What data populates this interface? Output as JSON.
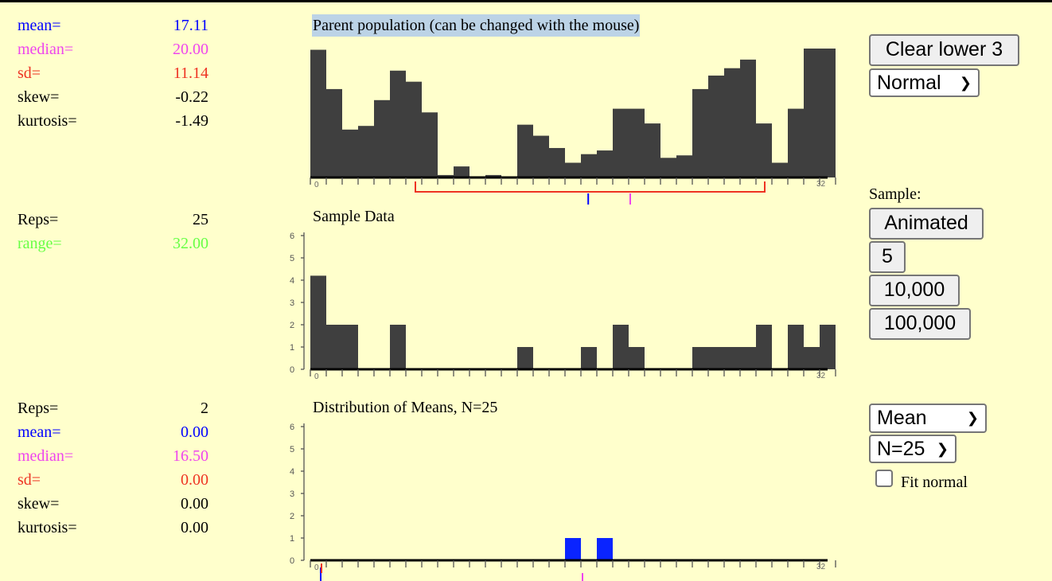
{
  "colors": {
    "background": "#ffffcc",
    "bar": "#3f3f3f",
    "mean_bar": "#0a24ff",
    "blue": "#0000ff",
    "magenta": "#ee44ee",
    "red": "#ee3322",
    "green": "#66ff44",
    "highlight": "#bcd3e6"
  },
  "parent_stats": [
    {
      "label": "mean=",
      "value": "17.11",
      "color": "blue"
    },
    {
      "label": "median=",
      "value": "20.00",
      "color": "magenta"
    },
    {
      "label": "sd=",
      "value": "11.14",
      "color": "red"
    },
    {
      "label": "skew=",
      "value": "-0.22",
      "color": "black"
    },
    {
      "label": "kurtosis=",
      "value": "-1.49",
      "color": "black"
    }
  ],
  "sample_stats": [
    {
      "label": "Reps=",
      "value": "25",
      "color": "black"
    },
    {
      "label": "range=",
      "value": "32.00",
      "color": "green"
    }
  ],
  "means_stats": [
    {
      "label": "Reps=",
      "value": "2",
      "color": "black"
    },
    {
      "label": "mean=",
      "value": "0.00",
      "color": "blue"
    },
    {
      "label": "median=",
      "value": "16.50",
      "color": "magenta"
    },
    {
      "label": "sd=",
      "value": "0.00",
      "color": "red"
    },
    {
      "label": "skew=",
      "value": "0.00",
      "color": "black"
    },
    {
      "label": "kurtosis=",
      "value": "0.00",
      "color": "black"
    }
  ],
  "parent_panel": {
    "title": "Parent population (can be changed with the mouse)",
    "axis_min_label": "0",
    "axis_max_label": "32"
  },
  "sample_panel": {
    "title": "Sample Data",
    "axis_min_label": "0",
    "axis_max_label": "32"
  },
  "means_panel": {
    "title": "Distribution of Means, N=25",
    "axis_min_label": "0",
    "axis_max_label": "32"
  },
  "controls": {
    "clear_button": "Clear lower 3",
    "shape_select": "Normal",
    "sample_label": "Sample:",
    "animated_button": "Animated",
    "btn_5": "5",
    "btn_10000": "10,000",
    "btn_100000": "100,000",
    "statistic_select": "Mean",
    "n_select": "N=25",
    "fit_normal_label": "Fit normal",
    "fit_normal_checked": false
  },
  "chart_data": [
    {
      "type": "bar",
      "name": "parent",
      "xlim": [
        0,
        33
      ],
      "ylim": [
        0,
        10.5
      ],
      "categories": [
        0,
        1,
        2,
        3,
        4,
        5,
        6,
        7,
        8,
        9,
        10,
        11,
        12,
        13,
        14,
        15,
        16,
        17,
        18,
        19,
        20,
        21,
        22,
        23,
        24,
        25,
        26,
        27,
        28,
        29,
        30,
        31,
        32
      ],
      "values": [
        10.4,
        7.2,
        3.9,
        4.2,
        6.3,
        8.7,
        7.8,
        5.3,
        0.2,
        0.9,
        0.1,
        0.2,
        0,
        4.3,
        3.4,
        2.4,
        1.2,
        1.9,
        2.2,
        5.6,
        5.6,
        4.4,
        1.6,
        1.8,
        7.2,
        8.3,
        8.9,
        9.6,
        4.4,
        1.2,
        5.6,
        10.5,
        10.5
      ],
      "markers": {
        "mean": 17.11,
        "median": 20.0,
        "sd_range": [
          6.5,
          28.5
        ]
      }
    },
    {
      "type": "bar",
      "name": "sample",
      "xlim": [
        0,
        33
      ],
      "ylim": [
        0,
        6
      ],
      "yticks": [
        0,
        1,
        2,
        3,
        4,
        5,
        6
      ],
      "categories": [
        0,
        1,
        2,
        3,
        4,
        5,
        6,
        7,
        8,
        9,
        10,
        11,
        12,
        13,
        14,
        15,
        16,
        17,
        18,
        19,
        20,
        21,
        22,
        23,
        24,
        25,
        26,
        27,
        28,
        29,
        30,
        31,
        32
      ],
      "values": [
        4.2,
        2,
        2,
        0,
        0,
        2,
        0,
        0,
        0,
        0,
        0,
        0,
        0,
        1,
        0,
        0,
        0,
        1,
        0,
        2,
        1,
        0,
        0,
        0,
        1,
        1,
        1,
        1,
        2,
        0,
        2,
        1,
        2
      ]
    },
    {
      "type": "bar",
      "name": "means",
      "xlim": [
        0,
        33
      ],
      "ylim": [
        0,
        6
      ],
      "yticks": [
        0,
        1,
        2,
        3,
        4,
        5,
        6
      ],
      "categories": [
        0,
        1,
        2,
        3,
        4,
        5,
        6,
        7,
        8,
        9,
        10,
        11,
        12,
        13,
        14,
        15,
        16,
        17,
        18,
        19,
        20,
        21,
        22,
        23,
        24,
        25,
        26,
        27,
        28,
        29,
        30,
        31,
        32
      ],
      "values": [
        0,
        0,
        0,
        0,
        0,
        0,
        0,
        0,
        0,
        0,
        0,
        0,
        0,
        0,
        0,
        0,
        1,
        0,
        1,
        0,
        0,
        0,
        0,
        0,
        0,
        0,
        0,
        0,
        0,
        0,
        0,
        0,
        0
      ],
      "markers": {
        "mean": 0.0,
        "median": 16.5
      }
    }
  ]
}
